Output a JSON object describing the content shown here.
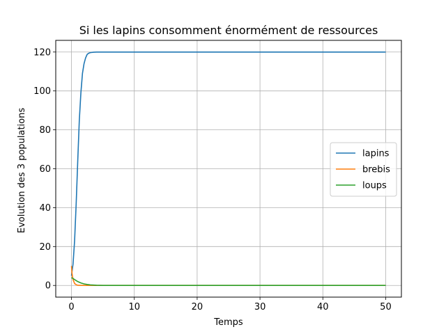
{
  "chart_data": {
    "type": "line",
    "title": "Si les lapins consomment énormément de ressources",
    "xlabel": "Temps",
    "ylabel": "Evolution des 3 populations",
    "xlim": [
      -2.5,
      52.5
    ],
    "ylim": [
      -6,
      126
    ],
    "xticks": [
      0,
      10,
      20,
      30,
      40,
      50
    ],
    "yticks": [
      0,
      20,
      40,
      60,
      80,
      100,
      120
    ],
    "grid": true,
    "legend_position": "center-right",
    "series": [
      {
        "name": "lapins",
        "color": "#1f77b4",
        "x": [
          0,
          0.25,
          0.5,
          0.75,
          1,
          1.25,
          1.5,
          1.75,
          2,
          2.25,
          2.5,
          2.75,
          3,
          3.5,
          4,
          5,
          6,
          8,
          10,
          20,
          30,
          40,
          50
        ],
        "y": [
          5,
          11,
          23,
          42,
          64,
          85,
          99,
          109,
          114,
          117,
          118.8,
          119.4,
          119.7,
          119.9,
          120,
          120,
          120,
          120,
          120,
          120,
          120,
          120,
          120
        ]
      },
      {
        "name": "brebis",
        "color": "#ff7f0e",
        "x": [
          0,
          0.1,
          0.25,
          0.5,
          0.75,
          1,
          1.5,
          2,
          3,
          5,
          10,
          20,
          30,
          40,
          50
        ],
        "y": [
          10,
          6,
          3,
          1,
          0.4,
          0.1,
          0,
          0,
          0,
          0,
          0,
          0,
          0,
          0,
          0
        ]
      },
      {
        "name": "loups",
        "color": "#2ca02c",
        "x": [
          0,
          0.25,
          0.5,
          1,
          1.5,
          2,
          2.5,
          3,
          4,
          5,
          6,
          10,
          20,
          30,
          40,
          50
        ],
        "y": [
          4,
          3.6,
          3,
          2,
          1.3,
          0.8,
          0.5,
          0.3,
          0.1,
          0,
          0,
          0,
          0,
          0,
          0,
          0
        ]
      }
    ]
  }
}
